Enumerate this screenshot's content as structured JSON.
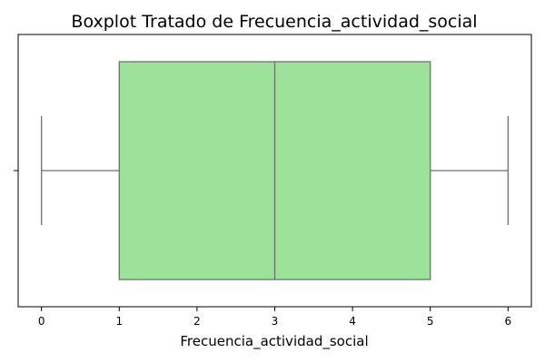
{
  "chart_data": {
    "type": "boxplot",
    "orientation": "horizontal",
    "title": "Boxplot Tratado de Frecuencia_actividad_social",
    "xlabel": "Frecuencia_actividad_social",
    "ylabel": "",
    "xlim": [
      -0.3,
      6.3
    ],
    "xticks": [
      0,
      1,
      2,
      3,
      4,
      5,
      6
    ],
    "stats": {
      "whisker_low": 0,
      "q1": 1,
      "median": 3,
      "q3": 5,
      "whisker_high": 6
    },
    "outliers": [],
    "colors": {
      "box_fill": "#9de29b",
      "lines": "#6f6f6f",
      "axes": "#000000"
    },
    "grid": false,
    "legend": "none"
  }
}
